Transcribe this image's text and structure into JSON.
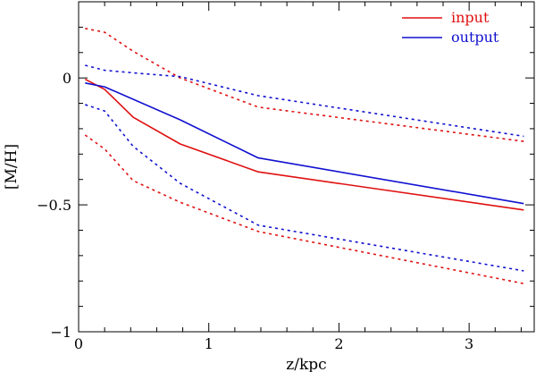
{
  "chart_data": {
    "type": "line",
    "title": "",
    "xlabel": "z/kpc",
    "ylabel": "[M/H]",
    "xlim": [
      0,
      3.5
    ],
    "ylim": [
      -1,
      0.3
    ],
    "grid": false,
    "legend_position": "top-right",
    "x_ticks": [
      {
        "value": 0,
        "label": "0"
      },
      {
        "value": 1,
        "label": "1"
      },
      {
        "value": 2,
        "label": "2"
      },
      {
        "value": 3,
        "label": "3"
      }
    ],
    "y_ticks": [
      {
        "value": -1,
        "label": "−1"
      },
      {
        "value": -0.5,
        "label": "−0.5"
      },
      {
        "value": 0,
        "label": "0"
      }
    ],
    "x_minor_step": 0.2,
    "y_minor_step": 0.1,
    "series": [
      {
        "name": "input",
        "color": "#e01010",
        "style": "solid",
        "legend": true,
        "x": [
          0.05,
          0.2,
          0.42,
          0.78,
          1.38,
          3.42
        ],
        "y": [
          -0.005,
          -0.045,
          -0.155,
          -0.26,
          -0.37,
          -0.52
        ]
      },
      {
        "name": "output",
        "color": "#1010d0",
        "style": "solid",
        "legend": true,
        "x": [
          0.05,
          0.2,
          0.78,
          1.38,
          3.42
        ],
        "y": [
          -0.02,
          -0.035,
          -0.165,
          -0.315,
          -0.495
        ]
      },
      {
        "color": "#e01010",
        "style": "dotted",
        "legend": false,
        "x": [
          0.05,
          0.2,
          0.42,
          0.78,
          1.38,
          3.42
        ],
        "y": [
          0.195,
          0.18,
          0.105,
          0.0,
          -0.115,
          -0.25
        ]
      },
      {
        "color": "#e01010",
        "style": "dotted",
        "legend": false,
        "x": [
          0.05,
          0.2,
          0.42,
          0.78,
          1.38,
          3.42
        ],
        "y": [
          -0.225,
          -0.28,
          -0.405,
          -0.49,
          -0.605,
          -0.81
        ]
      },
      {
        "color": "#1010d0",
        "style": "dotted",
        "legend": false,
        "x": [
          0.05,
          0.2,
          0.42,
          0.78,
          1.38,
          3.42
        ],
        "y": [
          0.05,
          0.03,
          0.02,
          0.005,
          -0.07,
          -0.23
        ]
      },
      {
        "color": "#1010d0",
        "style": "dotted",
        "legend": false,
        "x": [
          0.05,
          0.2,
          0.42,
          0.78,
          1.38,
          3.42
        ],
        "y": [
          -0.105,
          -0.13,
          -0.27,
          -0.415,
          -0.58,
          -0.76
        ]
      }
    ]
  }
}
